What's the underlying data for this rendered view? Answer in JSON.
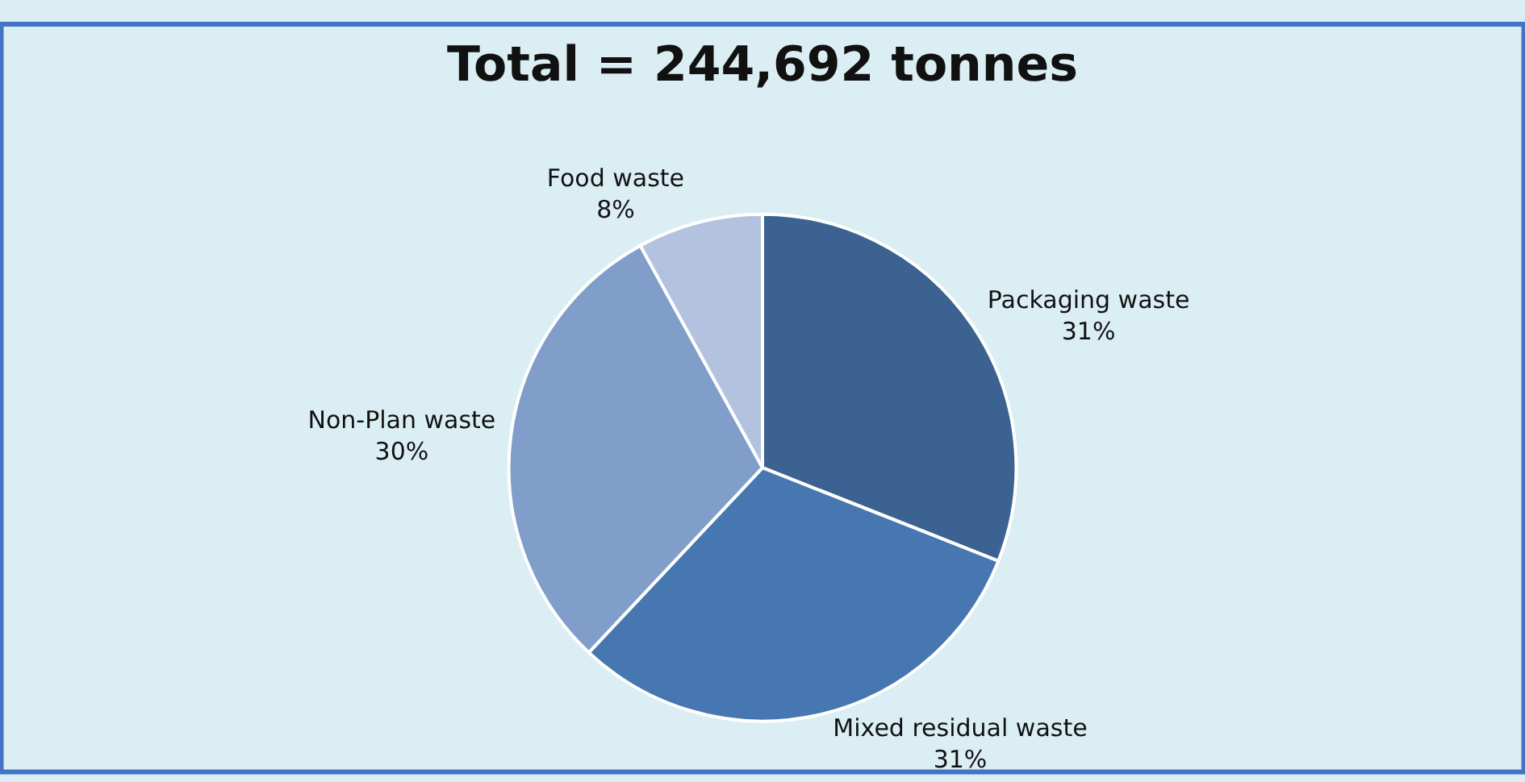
{
  "chart_data": {
    "type": "pie",
    "title": "Total = 244,692 tonnes",
    "categories": [
      "Packaging waste",
      "Mixed residual waste",
      "Non-Plan waste",
      "Food waste"
    ],
    "values": [
      31,
      31,
      30,
      8
    ],
    "colors": [
      "#3b6290",
      "#4777b0",
      "#809ec9",
      "#b3c3df"
    ],
    "value_labels": [
      "31%",
      "31%",
      "30%",
      "8%"
    ],
    "legend": false
  }
}
